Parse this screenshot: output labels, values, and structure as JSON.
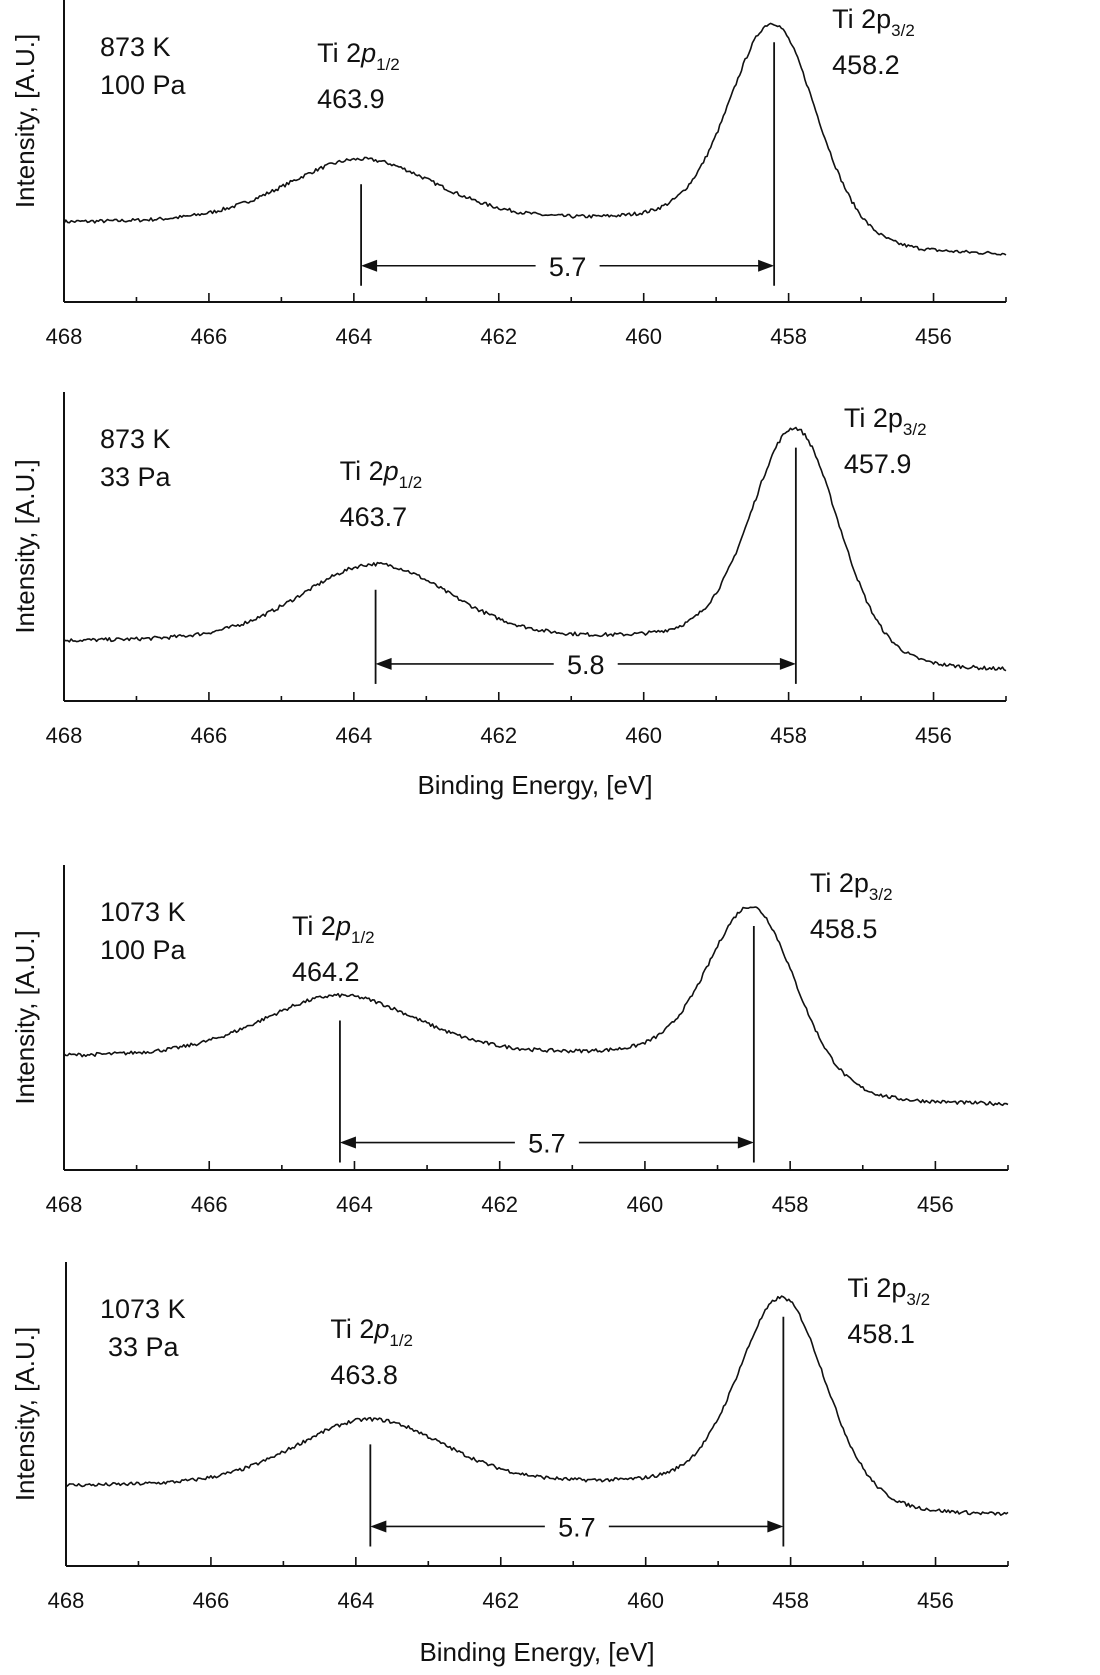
{
  "chart_data": [
    {
      "type": "line",
      "conditions": [
        "873 K",
        "100 Pa"
      ],
      "ylabel": "Intensity, [A.U.]",
      "xlabel": "",
      "xlim": [
        468,
        455
      ],
      "x_ticks": [
        "468",
        "466",
        "464",
        "462",
        "460",
        "458",
        "456"
      ],
      "peaks": [
        {
          "label": "Ti 2",
          "letter": "p",
          "subscript": "1/2",
          "italic": true,
          "value": "463.9",
          "position": 463.9,
          "height": 0.47
        },
        {
          "label": "Ti 2",
          "letter": "p",
          "subscript": "3/2",
          "italic": false,
          "value": "458.2",
          "position": 458.2,
          "height": 0.92
        }
      ],
      "baseline": {
        "start": 0.26,
        "end": 0.15
      },
      "widths": [
        1.45,
        0.85
      ],
      "splitting": {
        "label": "5.7",
        "from": 463.9,
        "to": 458.2
      }
    },
    {
      "type": "line",
      "conditions": [
        "873 K",
        "33 Pa"
      ],
      "ylabel": "Intensity, [A.U.]",
      "xlabel": "Binding Energy, [eV]",
      "xlim": [
        468,
        455
      ],
      "x_ticks": [
        "468",
        "466",
        "464",
        "462",
        "460",
        "458",
        "456"
      ],
      "peaks": [
        {
          "label": "Ti 2",
          "letter": "p",
          "subscript": "1/2",
          "italic": true,
          "value": "463.7",
          "position": 463.7,
          "height": 0.44
        },
        {
          "label": "Ti 2",
          "letter": "p",
          "subscript": "3/2",
          "italic": false,
          "value": "457.9",
          "position": 457.9,
          "height": 0.88
        }
      ],
      "baseline": {
        "start": 0.19,
        "end": 0.09
      },
      "widths": [
        1.45,
        0.85
      ],
      "splitting": {
        "label": "5.8",
        "from": 463.7,
        "to": 457.9
      }
    },
    {
      "type": "line",
      "conditions": [
        "1073 K",
        "100 Pa"
      ],
      "ylabel": "Intensity, [A.U.]",
      "xlabel": "",
      "xlim": [
        468,
        455
      ],
      "x_ticks": [
        "468",
        "466",
        "464",
        "462",
        "460",
        "458",
        "456"
      ],
      "peaks": [
        {
          "label": "Ti 2",
          "letter": "p",
          "subscript": "1/2",
          "italic": true,
          "value": "464.2",
          "position": 464.2,
          "height": 0.57
        },
        {
          "label": "Ti 2",
          "letter": "p",
          "subscript": "3/2",
          "italic": false,
          "value": "458.5",
          "position": 458.5,
          "height": 0.86
        }
      ],
      "baseline": {
        "start": 0.37,
        "end": 0.21
      },
      "widths": [
        1.5,
        0.85
      ],
      "splitting": {
        "label": "5.7",
        "from": 464.2,
        "to": 458.5
      }
    },
    {
      "type": "line",
      "conditions": [
        "1073 K",
        "33 Pa"
      ],
      "ylabel": "Intensity, [A.U.]",
      "xlabel": "Binding Energy, [eV]",
      "xlim": [
        468,
        455
      ],
      "x_ticks": [
        "468",
        "466",
        "464",
        "462",
        "460",
        "458",
        "456"
      ],
      "peaks": [
        {
          "label": "Ti 2",
          "letter": "p",
          "subscript": "1/2",
          "italic": true,
          "value": "463.8",
          "position": 463.8,
          "height": 0.48
        },
        {
          "label": "Ti 2",
          "letter": "p",
          "subscript": "3/2",
          "italic": false,
          "value": "458.1",
          "position": 458.1,
          "height": 0.88
        }
      ],
      "baseline": {
        "start": 0.26,
        "end": 0.16
      },
      "widths": [
        1.45,
        0.85
      ],
      "splitting": {
        "label": "5.7",
        "from": 463.8,
        "to": 458.1
      }
    }
  ]
}
